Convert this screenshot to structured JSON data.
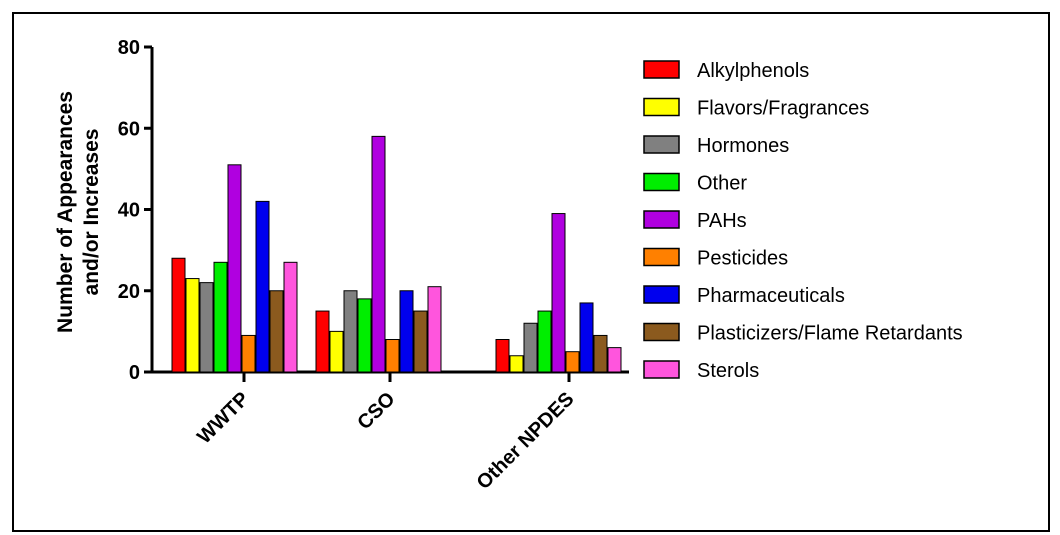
{
  "chart_data": {
    "type": "bar",
    "title": "",
    "xlabel": "",
    "ylabel_line1": "Number of Appearances",
    "ylabel_line2": "and/or Increases",
    "ylim": [
      0,
      80
    ],
    "yticks": [
      "0",
      "20",
      "40",
      "60",
      "80"
    ],
    "categories": [
      "WWTP",
      "CSO",
      "Other NPDES"
    ],
    "legend_position": "right",
    "grid": false,
    "series": [
      {
        "name": "Alkylphenols",
        "color": "#ff0000",
        "values": [
          28,
          15,
          8
        ]
      },
      {
        "name": "Flavors/Fragrances",
        "color": "#ffff00",
        "values": [
          23,
          10,
          4
        ]
      },
      {
        "name": "Hormones",
        "color": "#808080",
        "values": [
          22,
          20,
          12
        ]
      },
      {
        "name": "Other",
        "color": "#00ee00",
        "values": [
          27,
          18,
          15
        ]
      },
      {
        "name": "PAHs",
        "color": "#b000e0",
        "values": [
          51,
          58,
          39
        ]
      },
      {
        "name": "Pesticides",
        "color": "#ff8000",
        "values": [
          9,
          8,
          5
        ]
      },
      {
        "name": "Pharmaceuticals",
        "color": "#0000ee",
        "values": [
          42,
          20,
          17
        ]
      },
      {
        "name": "Plasticizers/Flame Retardants",
        "color": "#8b5a1e",
        "values": [
          20,
          15,
          9
        ]
      },
      {
        "name": "Sterols",
        "color": "#ff55dd",
        "values": [
          27,
          21,
          6
        ]
      }
    ]
  }
}
